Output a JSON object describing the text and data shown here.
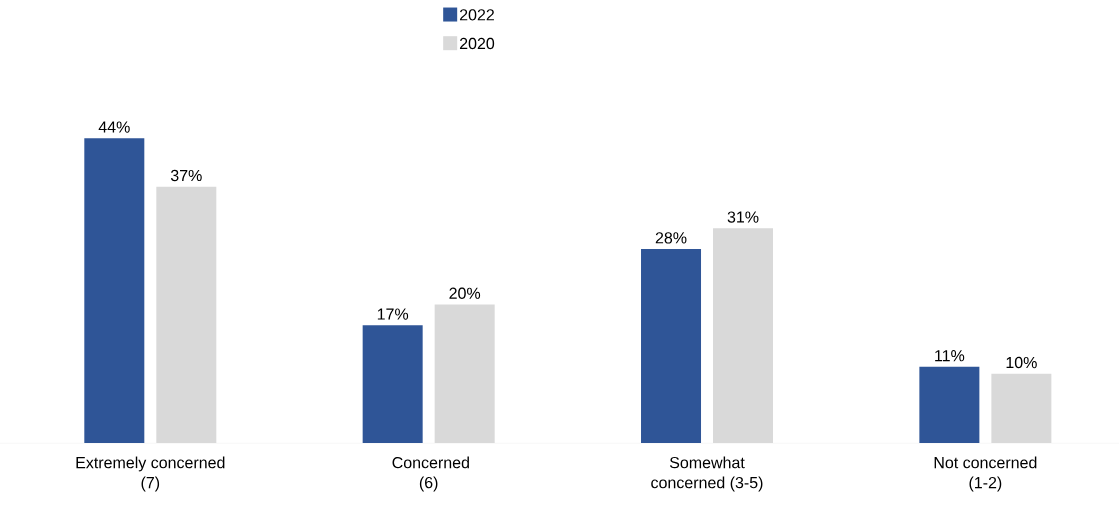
{
  "chart_data": {
    "type": "bar",
    "categories": [
      "Extremely concerned (7)",
      "Concerned (6)",
      "Somewhat concerned (3-5)",
      "Not concerned (1-2)"
    ],
    "series": [
      {
        "name": "2022",
        "color": "#2f5597",
        "values": [
          44,
          17,
          28,
          11
        ],
        "value_labels": [
          "44%",
          "17%",
          "28%",
          "11%"
        ]
      },
      {
        "name": "2020",
        "color": "#d9d9d9",
        "values": [
          37,
          20,
          31,
          10
        ],
        "value_labels": [
          "37%",
          "20%",
          "31%",
          "10%"
        ]
      }
    ],
    "legend": "top"
  }
}
